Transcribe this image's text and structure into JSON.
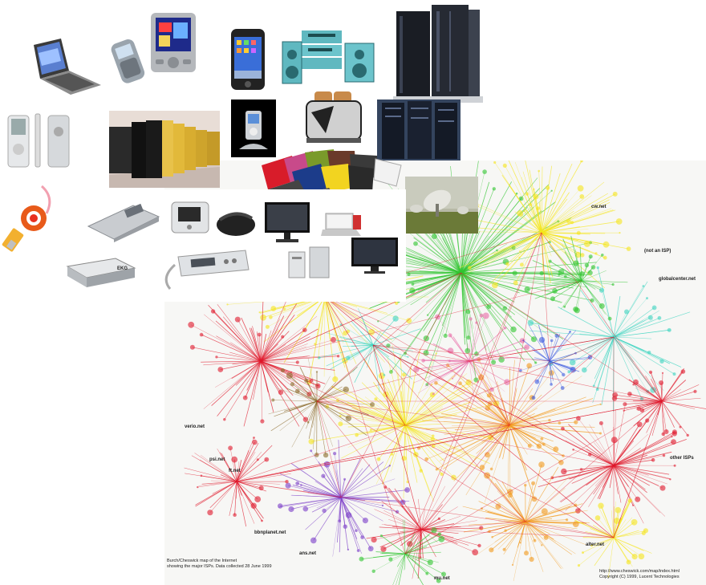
{
  "map": {
    "labels": {
      "cw": "cw.net",
      "not_isp": "(not an ISP)",
      "globalcenter": "globalcenter.net",
      "verio": "verio.net",
      "psi": "psi.net",
      "ft": "ft.net",
      "other_isps": "other ISPs",
      "bbnplanet": "bbnplanet.net",
      "ans": "ans.net",
      "alter": "alter.net",
      "mu": "mu.net"
    },
    "caption_left_1": "Burch/Cheswick map of the Internet",
    "caption_left_2": "showing the major ISPs.  Data collected 28 June 1999",
    "caption_right_1": "http://www.cheswick.com/map/index.html",
    "caption_right_2": "Copyright (C) 1999, Lucent Technologies",
    "colors": {
      "green": "#2fc42f",
      "yellow": "#f5e51a",
      "red": "#e0182b",
      "orange": "#f29a1c",
      "purple": "#7a3cc8",
      "cyan": "#3cd4c0",
      "blue": "#3c5ae0",
      "brown": "#8a6a2a",
      "pink": "#e86aa6"
    }
  },
  "devices": {
    "ekg_label": "EKG"
  }
}
